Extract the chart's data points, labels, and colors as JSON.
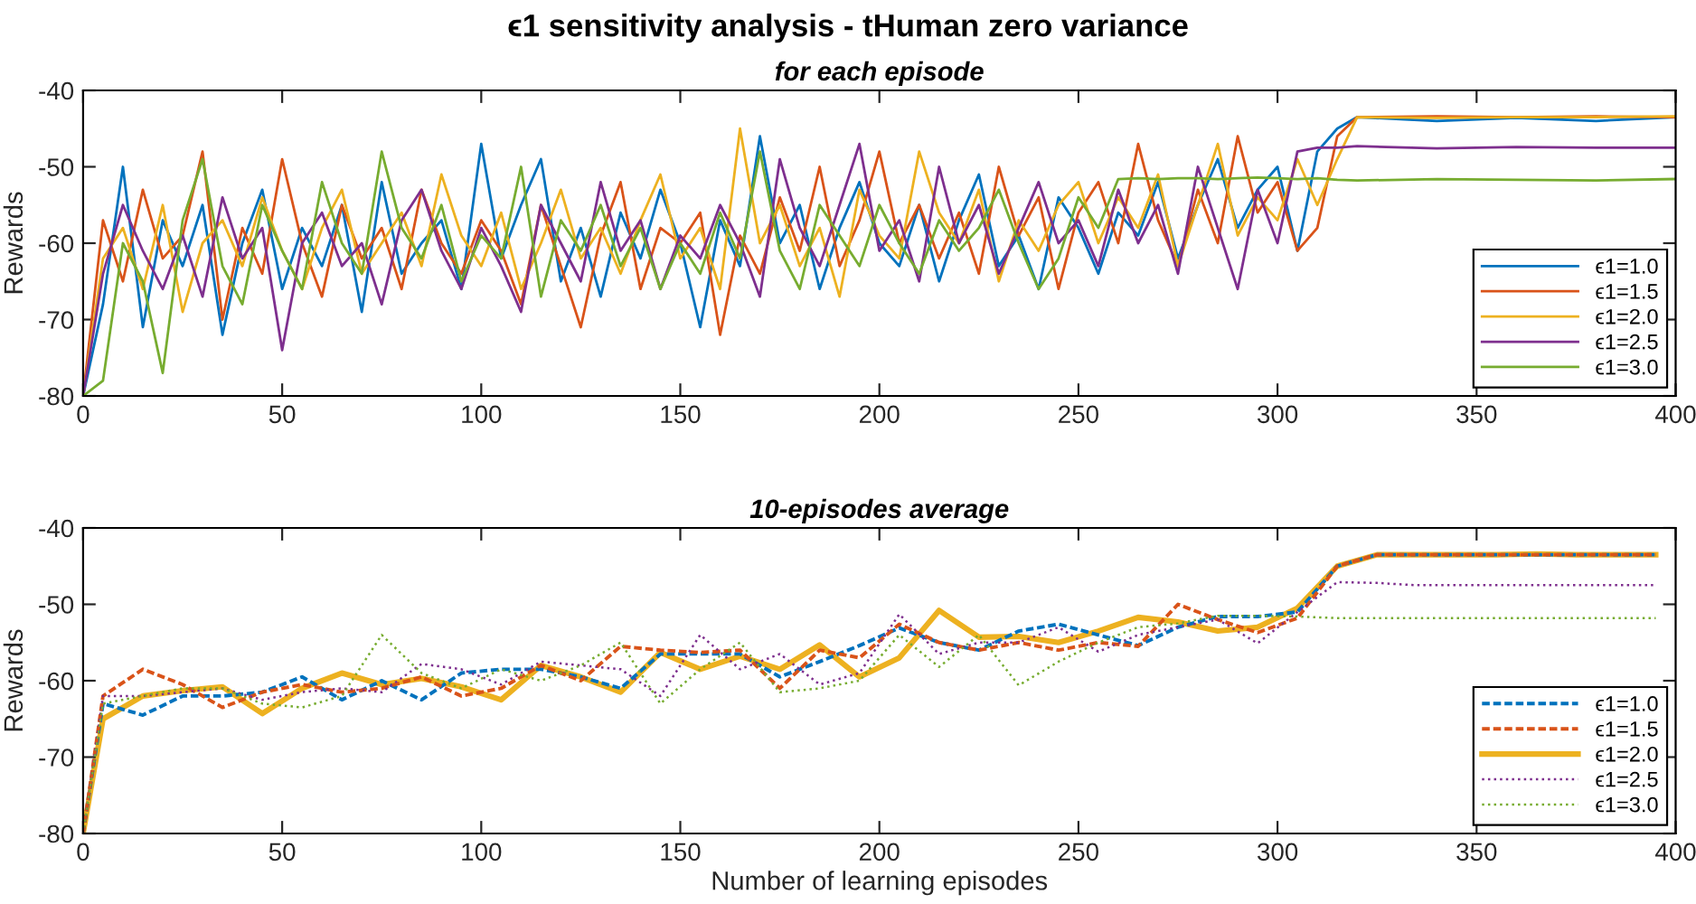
{
  "chart_data": [
    {
      "type": "line",
      "title": "ϵ1 sensitivity analysis - tHuman zero variance",
      "subtitle": "for each episode",
      "ylabel": "Rewards",
      "x": [
        0,
        5,
        10,
        15,
        20,
        25,
        30,
        35,
        40,
        45,
        50,
        55,
        60,
        65,
        70,
        75,
        80,
        85,
        90,
        95,
        100,
        105,
        110,
        115,
        120,
        125,
        130,
        135,
        140,
        145,
        150,
        155,
        160,
        165,
        170,
        175,
        180,
        185,
        190,
        195,
        200,
        205,
        210,
        215,
        220,
        225,
        230,
        235,
        240,
        245,
        250,
        255,
        260,
        265,
        270,
        275,
        280,
        285,
        290,
        295,
        300,
        305,
        310,
        315,
        320,
        340,
        360,
        380,
        400
      ],
      "series": [
        {
          "name": "ϵ1=1.0",
          "color": "#0072bd",
          "values": [
            -80,
            -68,
            -50,
            -71,
            -57,
            -63,
            -55,
            -72,
            -60,
            -53,
            -66,
            -58,
            -63,
            -55,
            -69,
            -52,
            -64,
            -60,
            -57,
            -66,
            -47,
            -62,
            -55,
            -49,
            -65,
            -58,
            -67,
            -56,
            -62,
            -53,
            -60,
            -71,
            -57,
            -63,
            -46,
            -60,
            -55,
            -66,
            -58,
            -52,
            -60,
            -63,
            -55,
            -65,
            -57,
            -51,
            -63,
            -59,
            -66,
            -54,
            -58,
            -64,
            -56,
            -59,
            -52,
            -62,
            -55,
            -49,
            -58,
            -53,
            -50,
            -61,
            -48,
            -45,
            -43.5,
            -44,
            -43.6,
            -44,
            -43.5
          ]
        },
        {
          "name": "ϵ1=1.5",
          "color": "#d95319",
          "values": [
            -80,
            -57,
            -65,
            -53,
            -62,
            -59,
            -48,
            -70,
            -58,
            -64,
            -49,
            -60,
            -67,
            -55,
            -62,
            -58,
            -66,
            -53,
            -60,
            -64,
            -57,
            -61,
            -68,
            -55,
            -63,
            -71,
            -59,
            -52,
            -66,
            -58,
            -60,
            -56,
            -72,
            -59,
            -64,
            -54,
            -61,
            -50,
            -63,
            -57,
            -48,
            -60,
            -55,
            -62,
            -56,
            -64,
            -50,
            -59,
            -54,
            -66,
            -56,
            -52,
            -60,
            -47,
            -57,
            -63,
            -53,
            -60,
            -46,
            -56,
            -52,
            -61,
            -58,
            -46,
            -43.5,
            -43.4,
            -43.5,
            -43.4,
            -43.5
          ]
        },
        {
          "name": "ϵ1=2.0",
          "color": "#edb120",
          "values": [
            -80,
            -62,
            -58,
            -66,
            -55,
            -69,
            -60,
            -57,
            -63,
            -54,
            -61,
            -66,
            -58,
            -53,
            -64,
            -60,
            -56,
            -63,
            -51,
            -59,
            -63,
            -56,
            -66,
            -60,
            -53,
            -62,
            -58,
            -64,
            -57,
            -51,
            -62,
            -58,
            -66,
            -45,
            -60,
            -55,
            -63,
            -58,
            -67,
            -53,
            -59,
            -62,
            -48,
            -56,
            -60,
            -53,
            -65,
            -57,
            -61,
            -55,
            -52,
            -60,
            -54,
            -58,
            -51,
            -63,
            -55,
            -47,
            -59,
            -54,
            -57,
            -49,
            -55,
            -49,
            -43.5,
            -43.6,
            -43.5,
            -43.5,
            -43.4
          ]
        },
        {
          "name": "ϵ1=2.5",
          "color": "#7e2f8e",
          "values": [
            -80,
            -64,
            -55,
            -61,
            -66,
            -59,
            -67,
            -54,
            -62,
            -58,
            -74,
            -60,
            -56,
            -63,
            -60,
            -68,
            -57,
            -53,
            -61,
            -66,
            -58,
            -63,
            -69,
            -55,
            -60,
            -65,
            -52,
            -61,
            -57,
            -66,
            -59,
            -62,
            -55,
            -60,
            -67,
            -49,
            -58,
            -63,
            -55,
            -47,
            -61,
            -57,
            -65,
            -50,
            -60,
            -55,
            -64,
            -58,
            -52,
            -60,
            -57,
            -63,
            -53,
            -60,
            -55,
            -64,
            -50,
            -58,
            -66,
            -53,
            -60,
            -48,
            -47.5,
            -47.5,
            -47.3,
            -47.6,
            -47.4,
            -47.5,
            -47.5
          ]
        },
        {
          "name": "ϵ1=3.0",
          "color": "#77ac30",
          "values": [
            -80,
            -78,
            -60,
            -65,
            -77,
            -57,
            -49,
            -63,
            -68,
            -55,
            -61,
            -66,
            -52,
            -60,
            -64,
            -48,
            -58,
            -62,
            -55,
            -65,
            -59,
            -62,
            -50,
            -67,
            -57,
            -61,
            -55,
            -63,
            -58,
            -66,
            -60,
            -64,
            -56,
            -62,
            -48,
            -61,
            -66,
            -55,
            -59,
            -63,
            -55,
            -60,
            -64,
            -57,
            -61,
            -58,
            -53,
            -60,
            -66,
            -62,
            -54,
            -58,
            -51.6,
            -51.5,
            -51.6,
            -51.5,
            -51.5,
            -51.6,
            -51.5,
            -51.4,
            -51.5,
            -51.6,
            -51.5,
            -51.7,
            -51.8,
            -51.6,
            -51.7,
            -51.8,
            -51.6
          ]
        }
      ],
      "xlim": [
        0,
        400
      ],
      "xticks": [
        0,
        50,
        100,
        150,
        200,
        250,
        300,
        350,
        400
      ],
      "ylim": [
        -80,
        -40
      ],
      "yticks": [
        -80,
        -70,
        -60,
        -50,
        -40
      ],
      "grid": false,
      "legend": "bottom right"
    },
    {
      "type": "line",
      "title": "10-episodes average",
      "xlabel": "Number of learning episodes",
      "ylabel": "Rewards",
      "x": [
        0,
        5,
        15,
        25,
        35,
        45,
        55,
        65,
        75,
        85,
        95,
        105,
        115,
        125,
        135,
        145,
        155,
        165,
        175,
        185,
        195,
        205,
        215,
        225,
        235,
        245,
        255,
        265,
        275,
        285,
        295,
        305,
        315,
        325,
        335,
        345,
        355,
        365,
        375,
        385,
        395
      ],
      "series": [
        {
          "name": "ϵ1=1.0",
          "color": "#0072bd",
          "line_style": "dashed",
          "values": [
            -80,
            -63,
            -64.5,
            -62,
            -62,
            -61.5,
            -59.5,
            -62.5,
            -60,
            -62.5,
            -59,
            -58.5,
            -58.5,
            -59.5,
            -61,
            -56.5,
            -56.5,
            -56.5,
            -59.5,
            -57.5,
            -55.4,
            -53.1,
            -55,
            -56,
            -53.5,
            -52.6,
            -54,
            -55.4,
            -53,
            -51.6,
            -51.6,
            -51,
            -45,
            -43.5,
            -43.5,
            -43.5,
            -43.5,
            -43.5,
            -43.5,
            -43.5,
            -43.5
          ]
        },
        {
          "name": "ϵ1=1.5",
          "color": "#d95319",
          "line_style": "dashed",
          "values": [
            -80,
            -62,
            -58.5,
            -60.5,
            -63.5,
            -61.5,
            -60.5,
            -61.5,
            -61,
            -59.5,
            -62,
            -61,
            -58,
            -60,
            -55.5,
            -56,
            -56.3,
            -56,
            -61,
            -56,
            -57,
            -52.6,
            -55,
            -56,
            -55,
            -56,
            -55,
            -55.5,
            -50,
            -52,
            -53.7,
            -51.8,
            -45,
            -43.5,
            -43.5,
            -43.5,
            -43.5,
            -43.5,
            -43.5,
            -43.5,
            -43.5
          ]
        },
        {
          "name": "ϵ1=2.0",
          "color": "#edb120",
          "line_style": "solid",
          "values": [
            -80,
            -65,
            -62,
            -61.3,
            -60.8,
            -64.3,
            -61,
            -59,
            -60.5,
            -59.7,
            -60.8,
            -62.5,
            -58,
            -59.5,
            -61.5,
            -56.3,
            -58.5,
            -56.8,
            -58.5,
            -55.3,
            -59.5,
            -57,
            -50.8,
            -54.3,
            -54.2,
            -55,
            -53.5,
            -51.7,
            -52.3,
            -53.5,
            -53,
            -50.5,
            -45,
            -43.5,
            -43.5,
            -43.5,
            -43.5,
            -43.4,
            -43.5,
            -43.5,
            -43.5
          ]
        },
        {
          "name": "ϵ1=2.5",
          "color": "#7e2f8e",
          "line_style": "dotted",
          "values": [
            -80,
            -62,
            -62,
            -61.5,
            -61,
            -62.5,
            -61.5,
            -61,
            -61.5,
            -57.8,
            -58.5,
            -60.5,
            -57.5,
            -58,
            -58.5,
            -62,
            -54,
            -58.5,
            -56.5,
            -60.5,
            -59,
            -51.3,
            -56.5,
            -55,
            -55,
            -53,
            -56.2,
            -54,
            -53,
            -52,
            -55.1,
            -51,
            -47.1,
            -47.2,
            -47.5,
            -47.5,
            -47.5,
            -47.5,
            -47.5,
            -47.5,
            -47.5
          ]
        },
        {
          "name": "ϵ1=3.0",
          "color": "#77ac30",
          "line_style": "dotted",
          "values": [
            -80,
            -63,
            -62,
            -61,
            -61,
            -63,
            -63.5,
            -62,
            -54,
            -59,
            -61,
            -58.5,
            -60,
            -58,
            -55,
            -63,
            -58.5,
            -55,
            -61.5,
            -61,
            -60,
            -54,
            -58.2,
            -54,
            -60.6,
            -57.5,
            -55,
            -53,
            -52.5,
            -51.5,
            -51.5,
            -51.6,
            -51.8,
            -51.8,
            -51.8,
            -51.8,
            -51.8,
            -51.8,
            -51.8,
            -51.8,
            -51.8
          ]
        }
      ],
      "xlim": [
        0,
        400
      ],
      "xticks": [
        0,
        50,
        100,
        150,
        200,
        250,
        300,
        350,
        400
      ],
      "ylim": [
        -80,
        -40
      ],
      "yticks": [
        -80,
        -70,
        -60,
        -50,
        -40
      ],
      "grid": false,
      "legend": "bottom right"
    }
  ]
}
